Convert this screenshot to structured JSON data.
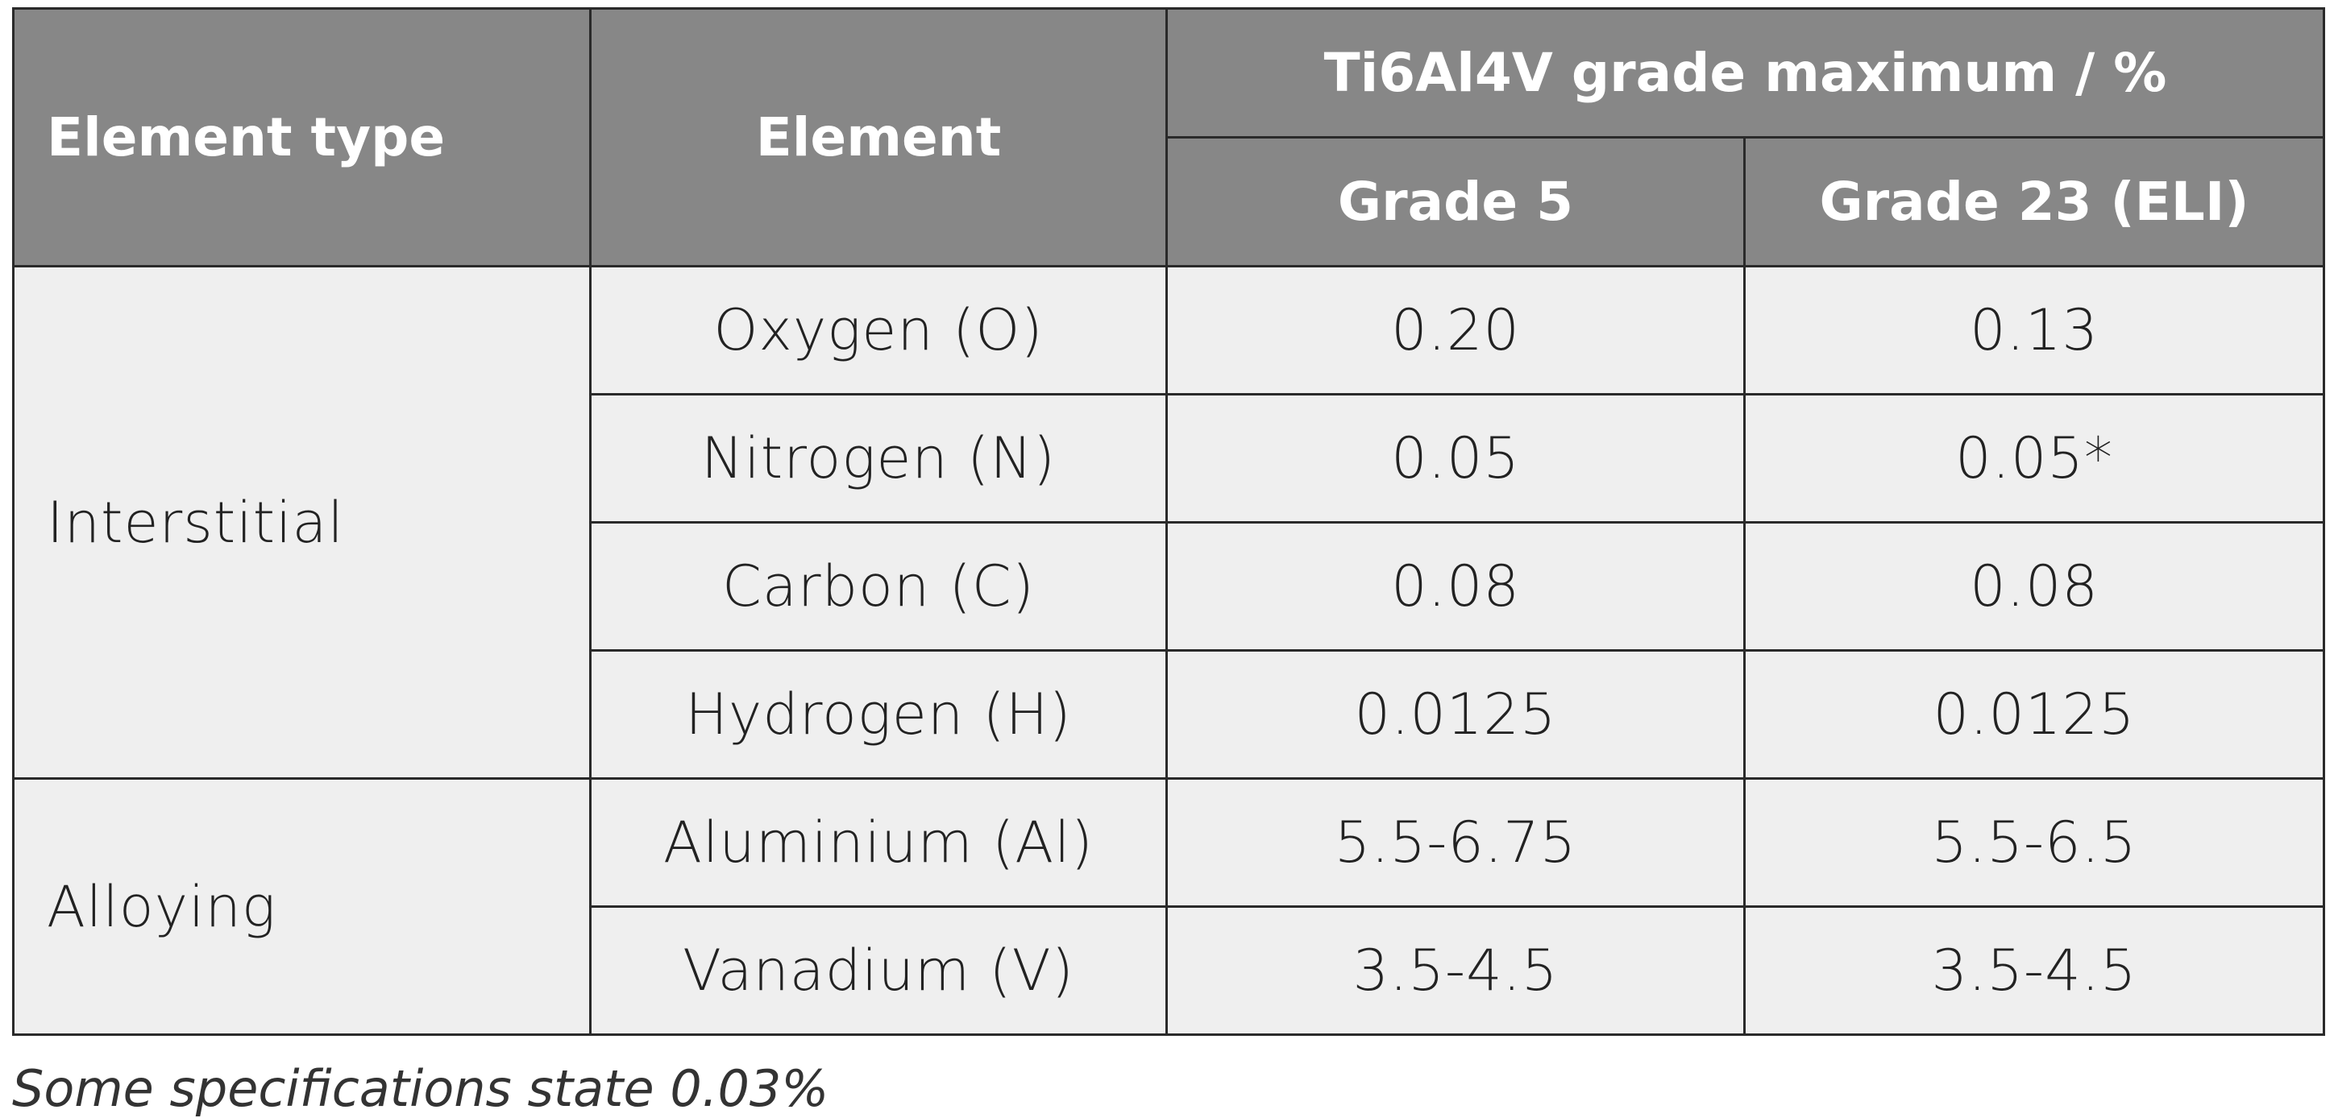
{
  "table": {
    "header": {
      "element_type": "Element type",
      "element": "Element",
      "group": "Ti6Al4V grade maximum / %",
      "columns": [
        "Grade 5",
        "Grade 23 (ELI)"
      ]
    },
    "groups": [
      {
        "type": "Interstitial",
        "rows": [
          [
            "Oxygen (O)",
            "0.20",
            "0.13"
          ],
          [
            "Nitrogen (N)",
            "0.05",
            "0.05*"
          ],
          [
            "Carbon (C)",
            "0.08",
            "0.08"
          ],
          [
            "Hydrogen (H)",
            "0.0125",
            "0.0125"
          ]
        ]
      },
      {
        "type": "Alloying",
        "rows": [
          [
            "Aluminium (Al)",
            "5.5-6.75",
            "5.5-6.5"
          ],
          [
            "Vanadium (V)",
            "3.5-4.5",
            "3.5-4.5"
          ]
        ]
      }
    ]
  },
  "footnote": "Some specifications state 0.03%"
}
